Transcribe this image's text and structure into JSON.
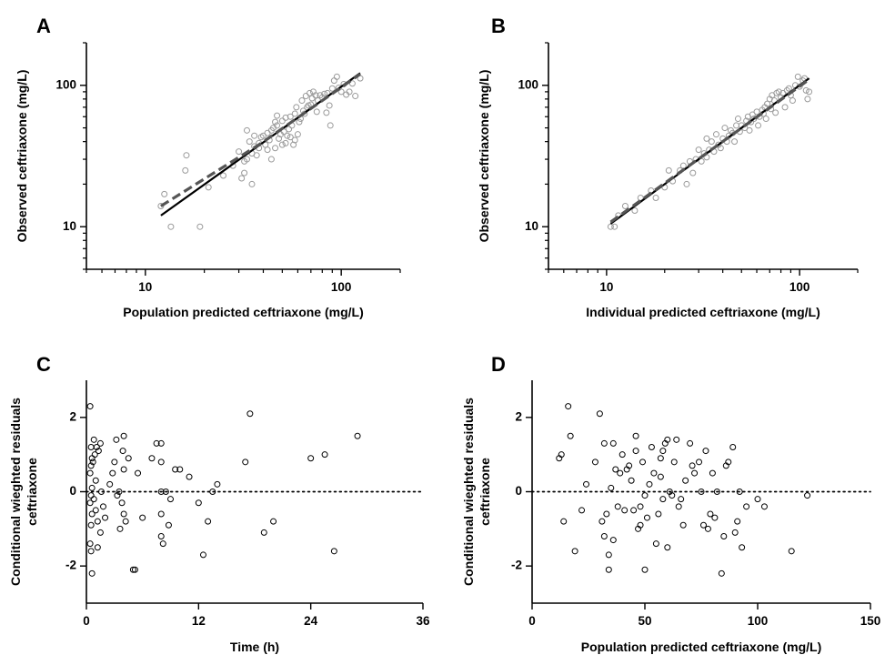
{
  "chart_data": [
    {
      "panel": "A",
      "type": "scatter",
      "xlabel": "Population predicted ceftriaxone (mg/L)",
      "ylabel": "Observed ceftriaxone (mg/L)",
      "x_scale": "log",
      "y_scale": "log",
      "xlim": [
        5,
        200
      ],
      "ylim": [
        5,
        200
      ],
      "x_ticks": [
        10,
        100
      ],
      "y_ticks": [
        10,
        100
      ],
      "x_tick_labels": [
        "10",
        "100"
      ],
      "y_tick_labels": [
        "10",
        "100"
      ],
      "grid": false,
      "marker_color": "#9a9a9a",
      "points": [
        [
          12,
          14
        ],
        [
          12.5,
          17
        ],
        [
          13.5,
          10
        ],
        [
          16,
          25
        ],
        [
          16.2,
          32
        ],
        [
          19,
          10
        ],
        [
          21,
          19
        ],
        [
          25,
          23
        ],
        [
          28,
          27
        ],
        [
          30,
          34
        ],
        [
          31,
          22
        ],
        [
          32,
          24
        ],
        [
          32,
          29
        ],
        [
          33,
          30
        ],
        [
          33,
          48
        ],
        [
          34,
          40
        ],
        [
          35,
          20
        ],
        [
          35,
          33
        ],
        [
          36,
          37
        ],
        [
          36,
          44
        ],
        [
          37,
          32
        ],
        [
          38,
          36
        ],
        [
          38,
          39
        ],
        [
          39,
          43
        ],
        [
          40,
          44
        ],
        [
          41,
          38
        ],
        [
          42,
          46
        ],
        [
          42,
          35
        ],
        [
          43,
          41
        ],
        [
          44,
          48
        ],
        [
          44,
          30
        ],
        [
          45,
          50
        ],
        [
          46,
          36
        ],
        [
          46,
          55
        ],
        [
          47,
          52
        ],
        [
          47,
          61
        ],
        [
          48,
          42
        ],
        [
          49,
          45
        ],
        [
          50,
          38
        ],
        [
          50,
          56
        ],
        [
          51,
          47
        ],
        [
          52,
          39
        ],
        [
          52,
          59
        ],
        [
          53,
          44
        ],
        [
          54,
          49
        ],
        [
          55,
          43
        ],
        [
          55,
          60
        ],
        [
          56,
          52
        ],
        [
          57,
          38
        ],
        [
          58,
          41
        ],
        [
          58,
          63
        ],
        [
          59,
          70
        ],
        [
          60,
          45
        ],
        [
          61,
          55
        ],
        [
          62,
          58
        ],
        [
          63,
          78
        ],
        [
          64,
          66
        ],
        [
          65,
          63
        ],
        [
          66,
          84
        ],
        [
          67,
          70
        ],
        [
          68,
          72
        ],
        [
          69,
          88
        ],
        [
          70,
          73
        ],
        [
          71,
          81
        ],
        [
          72,
          90
        ],
        [
          74,
          85
        ],
        [
          75,
          65
        ],
        [
          76,
          78
        ],
        [
          78,
          85
        ],
        [
          80,
          82
        ],
        [
          82,
          87
        ],
        [
          84,
          64
        ],
        [
          85,
          88
        ],
        [
          87,
          72
        ],
        [
          88,
          52
        ],
        [
          90,
          95
        ],
        [
          92,
          108
        ],
        [
          95,
          115
        ],
        [
          97,
          96
        ],
        [
          100,
          90
        ],
        [
          103,
          102
        ],
        [
          106,
          86
        ],
        [
          110,
          90
        ],
        [
          114,
          103
        ],
        [
          118,
          84
        ],
        [
          125,
          112
        ]
      ],
      "lines": [
        {
          "style": "solid",
          "color": "#000000",
          "points": [
            [
              12,
              12
            ],
            [
              125,
              122
            ]
          ]
        },
        {
          "style": "dashed",
          "color": "#555555",
          "points": [
            [
              12,
              14
            ],
            [
              38,
              38
            ],
            [
              125,
              120
            ]
          ]
        }
      ]
    },
    {
      "panel": "B",
      "type": "scatter",
      "xlabel": "Individual predicted ceftriaxone (mg/L)",
      "ylabel": "Observed ceftriaxone (mg/L)",
      "x_scale": "log",
      "y_scale": "log",
      "xlim": [
        5,
        200
      ],
      "ylim": [
        5,
        200
      ],
      "x_ticks": [
        10,
        100
      ],
      "y_ticks": [
        10,
        100
      ],
      "x_tick_labels": [
        "10",
        "100"
      ],
      "y_tick_labels": [
        "10",
        "100"
      ],
      "grid": false,
      "marker_color": "#9a9a9a",
      "points": [
        [
          10.5,
          10
        ],
        [
          11,
          10
        ],
        [
          11.5,
          12
        ],
        [
          12.5,
          14
        ],
        [
          14,
          13
        ],
        [
          15,
          16
        ],
        [
          17,
          18
        ],
        [
          18,
          16
        ],
        [
          20,
          19
        ],
        [
          21,
          25
        ],
        [
          22,
          21
        ],
        [
          24,
          25
        ],
        [
          25,
          27
        ],
        [
          26,
          20
        ],
        [
          27,
          29
        ],
        [
          28,
          24
        ],
        [
          29,
          30
        ],
        [
          30,
          35
        ],
        [
          31,
          29
        ],
        [
          32,
          33
        ],
        [
          33,
          31
        ],
        [
          33,
          42
        ],
        [
          34,
          35
        ],
        [
          35,
          40
        ],
        [
          36,
          34
        ],
        [
          37,
          45
        ],
        [
          38,
          38
        ],
        [
          39,
          36
        ],
        [
          40,
          42
        ],
        [
          41,
          50
        ],
        [
          42,
          40
        ],
        [
          43,
          44
        ],
        [
          44,
          48
        ],
        [
          45,
          46
        ],
        [
          46,
          40
        ],
        [
          47,
          52
        ],
        [
          48,
          58
        ],
        [
          49,
          47
        ],
        [
          50,
          52
        ],
        [
          52,
          50
        ],
        [
          53,
          56
        ],
        [
          54,
          60
        ],
        [
          55,
          48
        ],
        [
          56,
          55
        ],
        [
          57,
          62
        ],
        [
          58,
          58
        ],
        [
          60,
          65
        ],
        [
          61,
          52
        ],
        [
          62,
          60
        ],
        [
          64,
          67
        ],
        [
          65,
          63
        ],
        [
          66,
          70
        ],
        [
          67,
          58
        ],
        [
          68,
          74
        ],
        [
          70,
          80
        ],
        [
          71,
          68
        ],
        [
          72,
          85
        ],
        [
          74,
          78
        ],
        [
          75,
          64
        ],
        [
          76,
          88
        ],
        [
          78,
          90
        ],
        [
          80,
          82
        ],
        [
          82,
          88
        ],
        [
          84,
          70
        ],
        [
          86,
          92
        ],
        [
          88,
          95
        ],
        [
          90,
          85
        ],
        [
          92,
          78
        ],
        [
          95,
          100
        ],
        [
          98,
          115
        ],
        [
          100,
          98
        ],
        [
          104,
          108
        ],
        [
          106,
          112
        ],
        [
          108,
          92
        ],
        [
          110,
          80
        ],
        [
          112,
          90
        ]
      ],
      "lines": [
        {
          "style": "solid",
          "color": "#000000",
          "points": [
            [
              10.5,
              10.5
            ],
            [
              112,
              112
            ]
          ]
        },
        {
          "style": "dashed",
          "color": "#555555",
          "points": [
            [
              10.5,
              10.8
            ],
            [
              112,
              110
            ]
          ]
        }
      ]
    },
    {
      "panel": "C",
      "type": "scatter",
      "xlabel": "Time (h)",
      "ylabel": "Conditional wieghted residuals ceftriaxone",
      "ylabel_lines": [
        "Conditional wieghted residuals",
        "ceftriaxone"
      ],
      "xlim": [
        0,
        36
      ],
      "ylim": [
        -3,
        3
      ],
      "x_ticks": [
        0,
        12,
        24,
        36
      ],
      "y_ticks": [
        -2,
        0,
        2
      ],
      "x_tick_labels": [
        "0",
        "12",
        "24",
        "36"
      ],
      "y_tick_labels": [
        "-2",
        "0",
        "2"
      ],
      "grid": false,
      "marker_color": "#000000",
      "reference_line": {
        "y": 0,
        "style": "dotted"
      },
      "points": [
        [
          0.4,
          2.3
        ],
        [
          0.5,
          1.2
        ],
        [
          0.6,
          0.9
        ],
        [
          0.5,
          0.7
        ],
        [
          0.4,
          0.5
        ],
        [
          0.6,
          0.1
        ],
        [
          0.5,
          -0.1
        ],
        [
          0.4,
          -0.3
        ],
        [
          0.6,
          -0.6
        ],
        [
          0.5,
          -0.9
        ],
        [
          0.4,
          -1.4
        ],
        [
          0.5,
          -1.6
        ],
        [
          0.6,
          -2.2
        ],
        [
          0.7,
          0.8
        ],
        [
          0.8,
          1.4
        ],
        [
          0.9,
          1.0
        ],
        [
          0.8,
          -0.2
        ],
        [
          1.0,
          0.3
        ],
        [
          1.0,
          -0.5
        ],
        [
          1.1,
          1.2
        ],
        [
          1.2,
          -0.8
        ],
        [
          1.3,
          1.1
        ],
        [
          1.2,
          -1.5
        ],
        [
          1.5,
          1.3
        ],
        [
          1.6,
          0.0
        ],
        [
          1.5,
          -1.1
        ],
        [
          1.8,
          -0.4
        ],
        [
          2.0,
          -0.7
        ],
        [
          2.5,
          0.2
        ],
        [
          2.8,
          0.5
        ],
        [
          3.0,
          0.8
        ],
        [
          3.2,
          1.4
        ],
        [
          3.3,
          -0.1
        ],
        [
          3.5,
          0.0
        ],
        [
          3.6,
          -1.0
        ],
        [
          3.8,
          -0.3
        ],
        [
          3.9,
          1.1
        ],
        [
          4.0,
          1.5
        ],
        [
          4.0,
          0.6
        ],
        [
          4.0,
          -0.6
        ],
        [
          4.2,
          -0.8
        ],
        [
          4.5,
          0.9
        ],
        [
          5.0,
          -2.1
        ],
        [
          5.2,
          -2.1
        ],
        [
          5.5,
          0.5
        ],
        [
          6.0,
          -0.7
        ],
        [
          7.0,
          0.9
        ],
        [
          7.5,
          1.3
        ],
        [
          8.0,
          1.3
        ],
        [
          8.0,
          0.8
        ],
        [
          8.0,
          0.0
        ],
        [
          8.0,
          -0.6
        ],
        [
          8.0,
          -1.2
        ],
        [
          8.2,
          -1.4
        ],
        [
          8.5,
          0.0
        ],
        [
          8.8,
          -0.9
        ],
        [
          9.0,
          -0.2
        ],
        [
          9.5,
          0.6
        ],
        [
          10.0,
          0.6
        ],
        [
          11.0,
          0.4
        ],
        [
          12.0,
          -0.3
        ],
        [
          12.5,
          -1.7
        ],
        [
          13.0,
          -0.8
        ],
        [
          13.5,
          0.0
        ],
        [
          14.0,
          0.2
        ],
        [
          17.0,
          0.8
        ],
        [
          17.5,
          2.1
        ],
        [
          19.0,
          -1.1
        ],
        [
          20.0,
          -0.8
        ],
        [
          24.0,
          0.9
        ],
        [
          25.5,
          1.0
        ],
        [
          26.5,
          -1.6
        ],
        [
          29.0,
          1.5
        ]
      ]
    },
    {
      "panel": "D",
      "type": "scatter",
      "xlabel": "Population predicted ceftriaxone (mg/L)",
      "ylabel": "Conditional wieghted residuals ceftriaxone",
      "ylabel_lines": [
        "Conditional wieghted residuals",
        "ceftriaxone"
      ],
      "xlim": [
        0,
        150
      ],
      "ylim": [
        -3,
        3
      ],
      "x_ticks": [
        0,
        50,
        100,
        150
      ],
      "y_ticks": [
        -2,
        0,
        2
      ],
      "x_tick_labels": [
        "0",
        "50",
        "100",
        "150"
      ],
      "y_tick_labels": [
        "-2",
        "0",
        "2"
      ],
      "grid": false,
      "marker_color": "#000000",
      "reference_line": {
        "y": 0,
        "style": "dotted"
      },
      "points": [
        [
          12,
          0.9
        ],
        [
          13,
          1.0
        ],
        [
          14,
          -0.8
        ],
        [
          16,
          2.3
        ],
        [
          17,
          1.5
        ],
        [
          19,
          -1.6
        ],
        [
          22,
          -0.5
        ],
        [
          24,
          0.2
        ],
        [
          28,
          0.8
        ],
        [
          30,
          2.1
        ],
        [
          31,
          -0.8
        ],
        [
          32,
          1.3
        ],
        [
          32,
          -1.2
        ],
        [
          33,
          -0.6
        ],
        [
          34,
          -1.7
        ],
        [
          34,
          -2.1
        ],
        [
          35,
          0.1
        ],
        [
          36,
          1.3
        ],
        [
          36,
          -1.3
        ],
        [
          37,
          0.6
        ],
        [
          38,
          -0.4
        ],
        [
          39,
          0.5
        ],
        [
          40,
          1.0
        ],
        [
          41,
          -0.5
        ],
        [
          42,
          0.6
        ],
        [
          43,
          0.7
        ],
        [
          44,
          0.3
        ],
        [
          45,
          -0.5
        ],
        [
          46,
          1.1
        ],
        [
          46,
          1.5
        ],
        [
          47,
          -1.0
        ],
        [
          48,
          -0.4
        ],
        [
          48,
          -0.9
        ],
        [
          49,
          0.8
        ],
        [
          50,
          -2.1
        ],
        [
          50,
          -0.1
        ],
        [
          51,
          -0.7
        ],
        [
          52,
          0.2
        ],
        [
          53,
          1.2
        ],
        [
          54,
          0.5
        ],
        [
          55,
          -1.4
        ],
        [
          56,
          -0.6
        ],
        [
          57,
          0.4
        ],
        [
          57,
          0.9
        ],
        [
          58,
          1.1
        ],
        [
          58,
          -0.2
        ],
        [
          59,
          1.3
        ],
        [
          60,
          1.4
        ],
        [
          60,
          -1.5
        ],
        [
          61,
          0.0
        ],
        [
          62,
          -0.1
        ],
        [
          63,
          0.8
        ],
        [
          64,
          1.4
        ],
        [
          65,
          -0.4
        ],
        [
          66,
          -0.2
        ],
        [
          67,
          -0.9
        ],
        [
          68,
          0.3
        ],
        [
          70,
          1.3
        ],
        [
          71,
          0.7
        ],
        [
          72,
          0.5
        ],
        [
          74,
          0.8
        ],
        [
          75,
          0.0
        ],
        [
          76,
          -0.9
        ],
        [
          77,
          1.1
        ],
        [
          78,
          -1.0
        ],
        [
          79,
          -0.6
        ],
        [
          80,
          0.5
        ],
        [
          81,
          -0.7
        ],
        [
          82,
          0.0
        ],
        [
          84,
          -2.2
        ],
        [
          85,
          -1.2
        ],
        [
          86,
          0.7
        ],
        [
          87,
          0.8
        ],
        [
          89,
          1.2
        ],
        [
          90,
          -1.1
        ],
        [
          91,
          -0.8
        ],
        [
          92,
          0.0
        ],
        [
          93,
          -1.5
        ],
        [
          95,
          -0.4
        ],
        [
          100,
          -0.2
        ],
        [
          103,
          -0.4
        ],
        [
          115,
          -1.6
        ],
        [
          122,
          -0.1
        ]
      ]
    }
  ]
}
